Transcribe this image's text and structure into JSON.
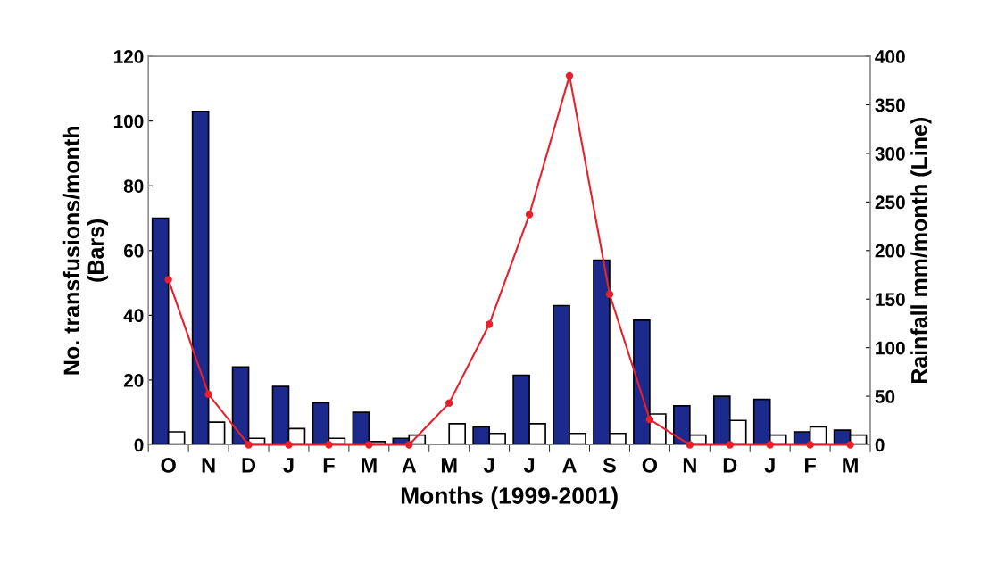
{
  "chart_data": {
    "type": "bar",
    "categories": [
      "O",
      "N",
      "D",
      "J",
      "F",
      "M",
      "A",
      "M",
      "J",
      "J",
      "A",
      "S",
      "O",
      "N",
      "D",
      "J",
      "F",
      "M"
    ],
    "series": [
      {
        "color": "#1c2a8e",
        "values": [
          70,
          103,
          24,
          18,
          13,
          10,
          2,
          null,
          5.5,
          21.5,
          43,
          57,
          38.5,
          12,
          15,
          14,
          4,
          4.5
        ]
      },
      {
        "color": "#ffffff",
        "values": [
          4,
          7,
          2,
          5,
          2,
          1,
          3,
          6.5,
          3.5,
          6.5,
          3.5,
          3.5,
          9.5,
          3,
          7.5,
          3,
          5.5,
          3
        ]
      },
      {
        "type": "line",
        "axis": "y2",
        "color": "#e8202a",
        "values": [
          170,
          52,
          0,
          0,
          0,
          0,
          0,
          43,
          124,
          237,
          380,
          155,
          26,
          0,
          0,
          0,
          0,
          0
        ]
      }
    ],
    "marker": "circle",
    "xlabel": "Months (1999-2001)",
    "ylabel": "No. transfusions/month\n(Bars)",
    "y2label": "Rainfall mm/month (Line)",
    "ylim": [
      0,
      120
    ],
    "yticks": [
      0,
      20,
      40,
      60,
      80,
      100,
      120
    ],
    "y2lim": [
      0,
      400
    ],
    "y2ticks": [
      0,
      50,
      100,
      150,
      200,
      250,
      300,
      350,
      400
    ]
  }
}
